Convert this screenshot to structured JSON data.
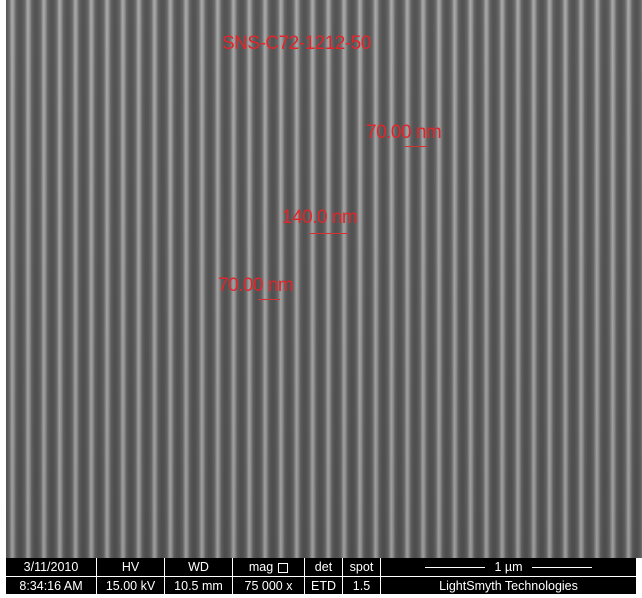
{
  "image": {
    "title": "SNS-C72-1212-50",
    "annotations": [
      "70.00 nm",
      "140.0 nm",
      "70.00 nm"
    ]
  },
  "info_bar": {
    "columns": [
      {
        "header": "3/11/2010",
        "value": "8:34:16 AM"
      },
      {
        "header": "HV",
        "value": "15.00 kV"
      },
      {
        "header": "WD",
        "value": "10.5 mm"
      },
      {
        "header": "mag",
        "value": "75 000 x"
      },
      {
        "header": "det",
        "value": "ETD"
      },
      {
        "header": "spot",
        "value": "1.5"
      }
    ],
    "scale_bar": "1 µm",
    "company": "LightSmyth Technologies"
  }
}
